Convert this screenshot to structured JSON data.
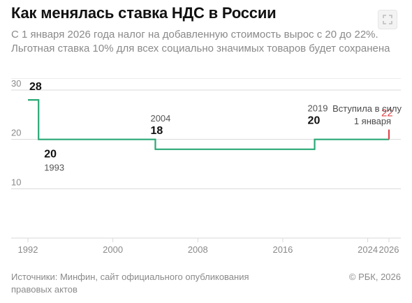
{
  "header": {
    "title": "Как менялась ставка НДС в России",
    "subtitle": "С 1 января 2026 года налог на добавленную стоимость вырос с 20 до 22%. Льготная ставка 10% для всех социально значимых товаров будет сохранена"
  },
  "footer": {
    "sources": "Источники: Минфин, сайт официального опубликования правовых актов",
    "copyright": "© РБК, 2026"
  },
  "icons": {
    "expand": "expand-icon"
  },
  "colors": {
    "line": "#2aa876",
    "highlight": "#e0454a",
    "grid": "#d9d9d9",
    "axis": "#8a8a8a",
    "label": "#111111"
  },
  "chart_data": {
    "type": "line",
    "step": true,
    "x": [
      1992,
      1993,
      2004,
      2019,
      2026
    ],
    "y": [
      28,
      20,
      18,
      20,
      22
    ],
    "xlim": [
      1992,
      2026
    ],
    "ylim": [
      0,
      30
    ],
    "xticks": [
      1992,
      2000,
      2008,
      2016,
      2024,
      2026
    ],
    "yticks": [
      10,
      20,
      30
    ],
    "grid": true,
    "annotations": [
      {
        "x": 1992,
        "y": 28,
        "value": "28",
        "year": ""
      },
      {
        "x": 1993,
        "y": 20,
        "value": "20",
        "year": "1993"
      },
      {
        "x": 2004,
        "y": 18,
        "value": "18",
        "year": "2004"
      },
      {
        "x": 2019,
        "y": 20,
        "value": "20",
        "year": "2019"
      },
      {
        "x": 2026,
        "y": 22,
        "value": "22",
        "year": ""
      }
    ],
    "note_line1": "Вступила в силу",
    "note_line2": "1 января"
  }
}
